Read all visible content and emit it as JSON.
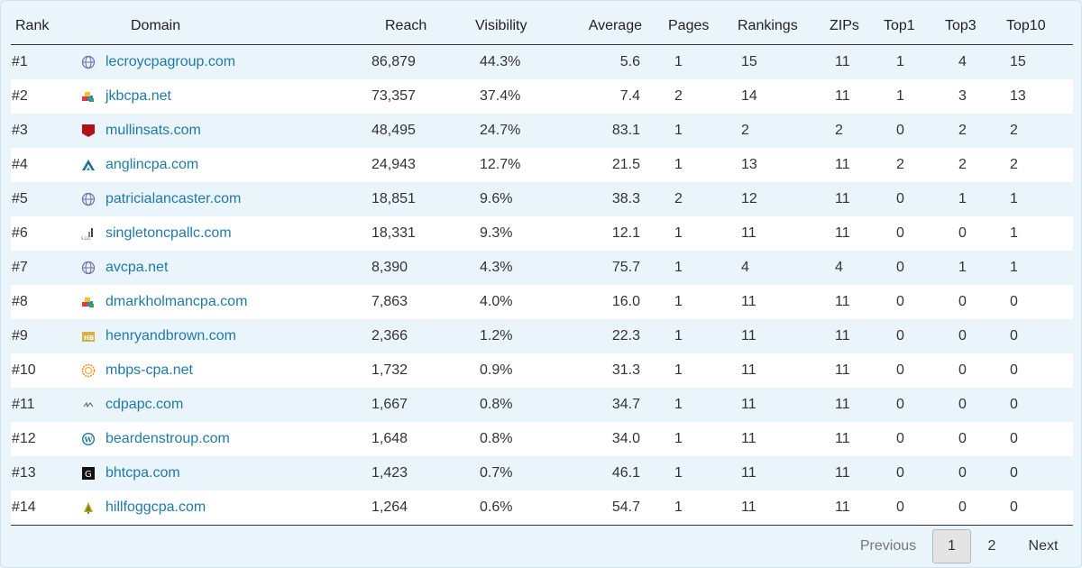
{
  "table": {
    "headers": {
      "rank": "Rank",
      "domain": "Domain",
      "reach": "Reach",
      "visibility": "Visibility",
      "average": "Average",
      "pages": "Pages",
      "rankings": "Rankings",
      "zips": "ZIPs",
      "top1": "Top1",
      "top3": "Top3",
      "top10": "Top10"
    },
    "rows": [
      {
        "rank": "#1",
        "icon": "globe-icon",
        "domain": "lecroycpagroup.com",
        "reach": "86,879",
        "visibility": "44.3%",
        "average": "5.6",
        "pages": "1",
        "rankings": "15",
        "zips": "11",
        "top1": "1",
        "top3": "4",
        "top10": "15"
      },
      {
        "rank": "#2",
        "icon": "colorful-blocks-icon",
        "domain": "jkbcpa.net",
        "reach": "73,357",
        "visibility": "37.4%",
        "average": "7.4",
        "pages": "2",
        "rankings": "14",
        "zips": "11",
        "top1": "1",
        "top3": "3",
        "top10": "13"
      },
      {
        "rank": "#3",
        "icon": "red-shield-icon",
        "domain": "mullinsats.com",
        "reach": "48,495",
        "visibility": "24.7%",
        "average": "83.1",
        "pages": "1",
        "rankings": "2",
        "zips": "2",
        "top1": "0",
        "top3": "2",
        "top10": "2"
      },
      {
        "rank": "#4",
        "icon": "teal-triangle-icon",
        "domain": "anglincpa.com",
        "reach": "24,943",
        "visibility": "12.7%",
        "average": "21.5",
        "pages": "1",
        "rankings": "13",
        "zips": "11",
        "top1": "2",
        "top3": "2",
        "top10": "2"
      },
      {
        "rank": "#5",
        "icon": "globe-icon",
        "domain": "patricialancaster.com",
        "reach": "18,851",
        "visibility": "9.6%",
        "average": "38.3",
        "pages": "2",
        "rankings": "12",
        "zips": "11",
        "top1": "0",
        "top3": "1",
        "top10": "1"
      },
      {
        "rank": "#6",
        "icon": "chart-logo-icon",
        "domain": "singletoncpallc.com",
        "reach": "18,331",
        "visibility": "9.3%",
        "average": "12.1",
        "pages": "1",
        "rankings": "11",
        "zips": "11",
        "top1": "0",
        "top3": "0",
        "top10": "1"
      },
      {
        "rank": "#7",
        "icon": "globe-icon",
        "domain": "avcpa.net",
        "reach": "8,390",
        "visibility": "4.3%",
        "average": "75.7",
        "pages": "1",
        "rankings": "4",
        "zips": "4",
        "top1": "0",
        "top3": "1",
        "top10": "1"
      },
      {
        "rank": "#8",
        "icon": "colorful-blocks-icon",
        "domain": "dmarkholmancpa.com",
        "reach": "7,863",
        "visibility": "4.0%",
        "average": "16.0",
        "pages": "1",
        "rankings": "11",
        "zips": "11",
        "top1": "0",
        "top3": "0",
        "top10": "0"
      },
      {
        "rank": "#9",
        "icon": "hb-badge-icon",
        "domain": "henryandbrown.com",
        "reach": "2,366",
        "visibility": "1.2%",
        "average": "22.3",
        "pages": "1",
        "rankings": "11",
        "zips": "11",
        "top1": "0",
        "top3": "0",
        "top10": "0"
      },
      {
        "rank": "#10",
        "icon": "orange-ring-icon",
        "domain": "mbps-cpa.net",
        "reach": "1,732",
        "visibility": "0.9%",
        "average": "31.3",
        "pages": "1",
        "rankings": "11",
        "zips": "11",
        "top1": "0",
        "top3": "0",
        "top10": "0"
      },
      {
        "rank": "#11",
        "icon": "small-mark-icon",
        "domain": "cdpapc.com",
        "reach": "1,667",
        "visibility": "0.8%",
        "average": "34.7",
        "pages": "1",
        "rankings": "11",
        "zips": "11",
        "top1": "0",
        "top3": "0",
        "top10": "0"
      },
      {
        "rank": "#12",
        "icon": "wordpress-icon",
        "domain": "beardenstroup.com",
        "reach": "1,648",
        "visibility": "0.8%",
        "average": "34.0",
        "pages": "1",
        "rankings": "11",
        "zips": "11",
        "top1": "0",
        "top3": "0",
        "top10": "0"
      },
      {
        "rank": "#13",
        "icon": "black-g-icon",
        "domain": "bhtcpa.com",
        "reach": "1,423",
        "visibility": "0.7%",
        "average": "46.1",
        "pages": "1",
        "rankings": "11",
        "zips": "11",
        "top1": "0",
        "top3": "0",
        "top10": "0"
      },
      {
        "rank": "#14",
        "icon": "tree-icon",
        "domain": "hillfoggcpa.com",
        "reach": "1,264",
        "visibility": "0.6%",
        "average": "54.7",
        "pages": "1",
        "rankings": "11",
        "zips": "11",
        "top1": "0",
        "top3": "0",
        "top10": "0"
      }
    ]
  },
  "pagination": {
    "previous": "Previous",
    "pages": [
      "1",
      "2"
    ],
    "current": "1",
    "next": "Next"
  },
  "colors": {
    "link": "#1f7aa8",
    "odd_row": "#eaf4fb",
    "even_row": "#ffffff"
  }
}
